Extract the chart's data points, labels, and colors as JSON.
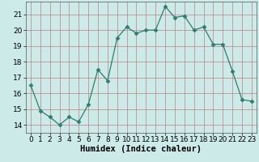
{
  "x": [
    0,
    1,
    2,
    3,
    4,
    5,
    6,
    7,
    8,
    9,
    10,
    11,
    12,
    13,
    14,
    15,
    16,
    17,
    18,
    19,
    20,
    21,
    22,
    23
  ],
  "y": [
    16.5,
    14.9,
    14.5,
    14.0,
    14.5,
    14.2,
    15.3,
    17.5,
    16.8,
    19.5,
    20.2,
    19.8,
    20.0,
    20.0,
    21.5,
    20.8,
    20.9,
    20.0,
    20.2,
    19.1,
    19.1,
    17.4,
    15.6,
    15.5
  ],
  "line_color": "#2e7d6e",
  "marker": "D",
  "marker_size": 2.5,
  "bg_color": "#cceae7",
  "grid_color": "#c08080",
  "xlabel": "Humidex (Indice chaleur)",
  "ylim": [
    13.5,
    21.8
  ],
  "xlim": [
    -0.5,
    23.5
  ],
  "yticks": [
    14,
    15,
    16,
    17,
    18,
    19,
    20,
    21
  ],
  "xticks": [
    0,
    1,
    2,
    3,
    4,
    5,
    6,
    7,
    8,
    9,
    10,
    11,
    12,
    13,
    14,
    15,
    16,
    17,
    18,
    19,
    20,
    21,
    22,
    23
  ],
  "xlabel_fontsize": 7.5,
  "tick_fontsize": 6.5
}
